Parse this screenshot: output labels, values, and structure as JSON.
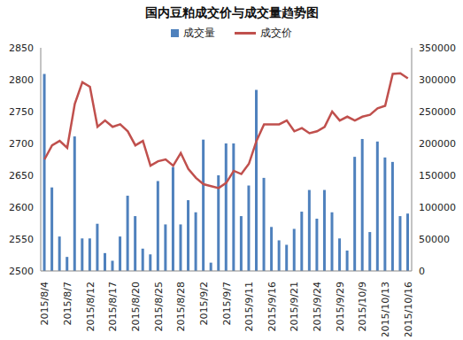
{
  "chart_data": {
    "type": "combo",
    "title": "国内豆粕成交价与成交量趋势图",
    "categories": [
      "2015/8/4",
      null,
      null,
      "2015/8/7",
      null,
      null,
      "2015/8/12",
      null,
      null,
      "2015/8/17",
      null,
      null,
      "2015/8/20",
      null,
      null,
      "2015/8/25",
      null,
      null,
      "2015/8/28",
      null,
      null,
      "2015/9/2",
      null,
      null,
      "2015/9/7",
      null,
      null,
      "2015/9/11",
      null,
      null,
      "2015/9/16",
      null,
      null,
      "2015/9/21",
      null,
      null,
      "2015/9/24",
      null,
      null,
      "2015/9/29",
      null,
      null,
      "2015/10/9",
      null,
      null,
      "2015/10/13",
      null,
      null,
      "2015/10/16"
    ],
    "series": [
      {
        "name": "成交量",
        "type": "bar",
        "color": "#4f81bd",
        "axis": "y2",
        "values": [
          309000,
          131000,
          54000,
          22000,
          211000,
          51000,
          51000,
          74000,
          28000,
          16000,
          54000,
          118000,
          86000,
          35000,
          26000,
          141000,
          73000,
          163000,
          73000,
          111000,
          92000,
          206000,
          13000,
          150000,
          200000,
          200000,
          86000,
          134000,
          284000,
          146000,
          69000,
          48000,
          41000,
          66000,
          93000,
          127000,
          82000,
          127000,
          92000,
          51000,
          32000,
          179000,
          207000,
          61000,
          203000,
          178000,
          171000,
          86000,
          90000
        ]
      },
      {
        "name": "成交价",
        "type": "line",
        "color": "#c0504d",
        "values": [
          2675,
          2697,
          2704,
          2693,
          2762,
          2796,
          2789,
          2726,
          2736,
          2726,
          2730,
          2719,
          2697,
          2704,
          2665,
          2672,
          2675,
          2665,
          2685,
          2660,
          2646,
          2636,
          2633,
          2630,
          2638,
          2657,
          2652,
          2668,
          2704,
          2730,
          2730,
          2730,
          2736,
          2719,
          2724,
          2716,
          2719,
          2726,
          2750,
          2736,
          2742,
          2736,
          2742,
          2745,
          2755,
          2759,
          2809,
          2810,
          2802
        ]
      }
    ],
    "ylim": [
      2500,
      2850
    ],
    "yticks": [
      2500,
      2550,
      2600,
      2650,
      2700,
      2750,
      2800,
      2850
    ],
    "y2lim": [
      0,
      350000
    ],
    "y2ticks": [
      0,
      50000,
      100000,
      150000,
      200000,
      250000,
      300000,
      350000
    ],
    "legend": "top"
  }
}
